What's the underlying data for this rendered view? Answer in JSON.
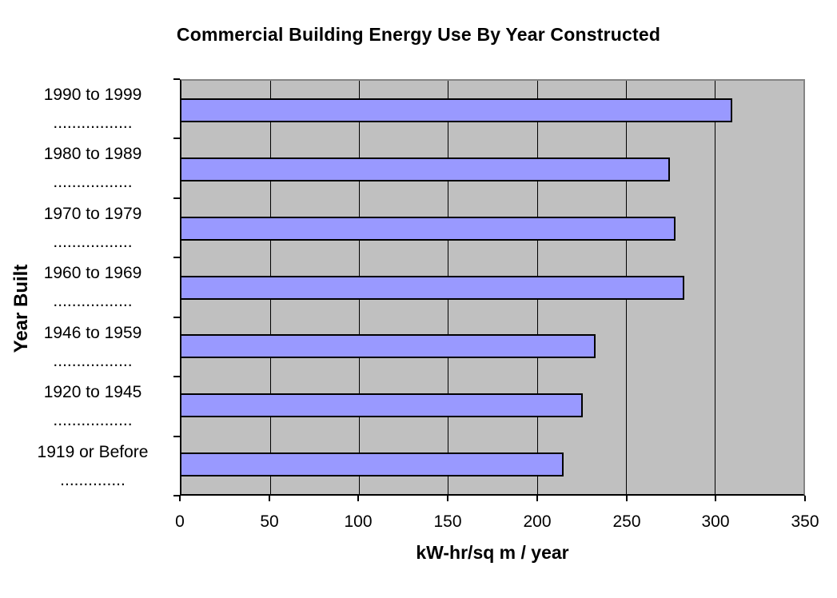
{
  "chart_data": {
    "type": "bar",
    "orientation": "horizontal",
    "title": "Commercial Building Energy Use By Year Constructed",
    "xlabel": "kW-hr/sq m / year",
    "ylabel": "Year Built",
    "categories": [
      "1990 to 1999",
      "1980 to 1989",
      "1970 to 1979",
      "1960 to 1969",
      "1946 to 1959",
      "1920 to 1945",
      "1919 or Before"
    ],
    "category_dot_lines": [
      ".................",
      ".................",
      ".................",
      ".................",
      ".................",
      ".................",
      ".............."
    ],
    "values": [
      310,
      275,
      278,
      283,
      233,
      226,
      215
    ],
    "xlim": [
      0,
      350
    ],
    "xticks": [
      0,
      50,
      100,
      150,
      200,
      250,
      300,
      350
    ],
    "grid": "vertical-major-only",
    "legend": "none",
    "colors": {
      "bar_fill": "#9999FF",
      "bar_border": "#000000",
      "plot_background": "#C0C0C0",
      "plot_border": "#848484",
      "axis_line": "#000000",
      "gridline": "#000000",
      "page_background": "#FFFFFF",
      "text": "#000000"
    }
  }
}
